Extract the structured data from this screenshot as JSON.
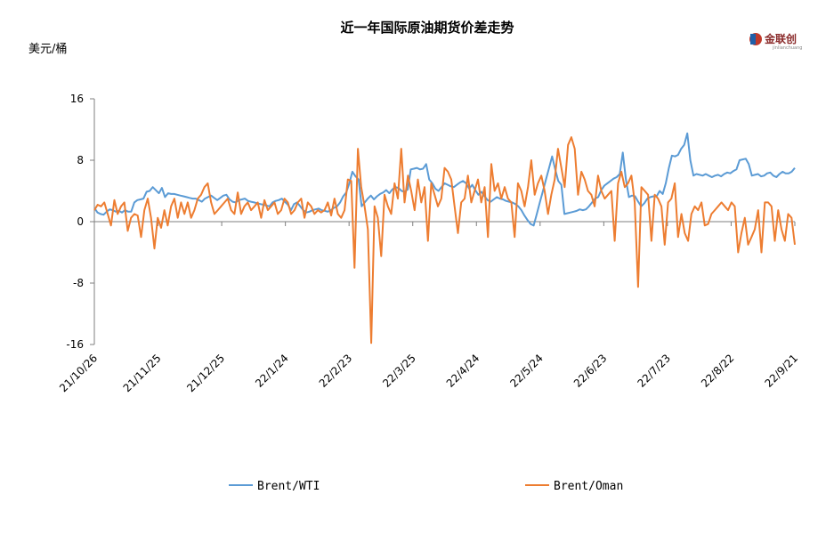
{
  "chart_data": {
    "type": "line",
    "title": "近一年国际原油期货价差走势",
    "ylabel": "美元/桶",
    "ylim": [
      -16,
      16
    ],
    "yticks": [
      16,
      8,
      0,
      -8,
      -16
    ],
    "xticks": [
      "21/10/26",
      "21/11/25",
      "21/12/25",
      "22/1/24",
      "22/2/23",
      "22/3/25",
      "22/4/24",
      "22/5/24",
      "22/6/23",
      "22/7/23",
      "22/8/22",
      "22/9/21"
    ],
    "grid": false,
    "legend_position": "bottom",
    "series": [
      {
        "name": "Brent/WTI",
        "color": "#5b9bd5",
        "values": [
          1.8,
          1.2,
          1.0,
          0.9,
          1.3,
          1.6,
          1.5,
          1.3,
          1.4,
          1.2,
          1.5,
          1.3,
          1.3,
          2.5,
          2.8,
          2.9,
          3.0,
          3.9,
          4.0,
          4.5,
          4.1,
          3.7,
          4.4,
          3.2,
          3.7,
          3.6,
          3.6,
          3.5,
          3.4,
          3.3,
          3.2,
          3.1,
          3.0,
          3.0,
          2.8,
          2.6,
          3.0,
          3.2,
          3.4,
          3.1,
          2.8,
          3.1,
          3.4,
          3.5,
          2.9,
          2.6,
          2.5,
          2.8,
          2.9,
          3.0,
          2.7,
          2.6,
          2.5,
          2.4,
          2.3,
          2.2,
          2.1,
          2.0,
          2.5,
          2.7,
          2.8,
          3.0,
          2.6,
          2.2,
          1.5,
          2.3,
          2.5,
          2.0,
          1.5,
          1.2,
          1.3,
          1.5,
          1.6,
          1.7,
          1.5,
          1.4,
          1.3,
          1.5,
          1.8,
          2.0,
          2.5,
          3.3,
          3.8,
          5.0,
          6.5,
          5.9,
          5.5,
          2.0,
          2.5,
          3.0,
          3.4,
          2.9,
          3.3,
          3.6,
          3.8,
          4.1,
          3.7,
          4.2,
          4.5,
          4.4,
          4.0,
          3.9,
          4.2,
          6.8,
          6.9,
          7.0,
          6.8,
          6.9,
          7.5,
          5.5,
          5.0,
          4.3,
          4.0,
          4.5,
          5.0,
          4.8,
          4.6,
          4.5,
          4.8,
          5.1,
          5.3,
          5.0,
          4.3,
          4.8,
          4.1,
          3.5,
          3.9,
          3.3,
          2.8,
          2.6,
          2.9,
          3.2,
          3.0,
          2.9,
          2.7,
          2.6,
          2.5,
          2.3,
          2.0,
          1.5,
          0.8,
          0.2,
          -0.3,
          -0.5,
          1.0,
          2.5,
          4.0,
          5.5,
          7.0,
          8.5,
          6.8,
          5.3,
          4.8,
          1.0,
          1.1,
          1.2,
          1.3,
          1.4,
          1.6,
          1.5,
          1.6,
          2.0,
          2.5,
          3.0,
          3.2,
          4.1,
          4.7,
          5.0,
          5.3,
          5.6,
          5.8,
          6.2,
          9.0,
          5.5,
          3.2,
          3.4,
          3.3,
          2.6,
          2.0,
          2.4,
          3.0,
          3.2,
          3.3,
          3.3,
          4.0,
          3.6,
          5.0,
          7.0,
          8.6,
          8.5,
          8.7,
          9.5,
          10.0,
          11.5,
          8.0,
          6.0,
          6.2,
          6.1,
          6.0,
          6.2,
          6.0,
          5.8,
          6.0,
          6.1,
          5.9,
          6.2,
          6.4,
          6.3,
          6.6,
          6.8,
          8.0,
          8.1,
          8.2,
          7.5,
          6.0,
          6.1,
          6.2,
          5.9,
          6.0,
          6.3,
          6.4,
          6.0,
          5.8,
          6.2,
          6.5,
          6.3,
          6.3,
          6.5,
          7.0
        ]
      },
      {
        "name": "Brent/Oman",
        "color": "#ed7d31",
        "values": [
          1.5,
          2.2,
          2.0,
          2.5,
          1.0,
          -0.5,
          2.8,
          1.0,
          2.0,
          2.5,
          -1.2,
          0.5,
          1.0,
          0.8,
          -2.0,
          1.5,
          3.0,
          0.5,
          -3.5,
          0.5,
          -0.8,
          1.5,
          -0.5,
          2.0,
          3.0,
          0.5,
          2.5,
          1.0,
          2.5,
          0.5,
          1.5,
          3.0,
          3.5,
          4.5,
          5.0,
          2.5,
          1.0,
          1.5,
          2.0,
          2.5,
          3.0,
          1.5,
          1.0,
          3.8,
          1.0,
          2.0,
          2.5,
          1.5,
          2.0,
          2.5,
          0.5,
          2.8,
          1.5,
          2.0,
          2.5,
          1.0,
          1.5,
          3.0,
          2.5,
          1.0,
          1.5,
          2.5,
          3.0,
          0.5,
          2.5,
          2.0,
          1.0,
          1.5,
          1.2,
          1.5,
          2.5,
          0.8,
          3.0,
          1.0,
          0.5,
          1.5,
          5.5,
          5.3,
          -6.0,
          9.5,
          4.5,
          2.0,
          -1.0,
          -15.8,
          2.0,
          0.5,
          -4.5,
          3.5,
          2.0,
          1.0,
          5.0,
          3.0,
          9.5,
          2.5,
          6.0,
          4.0,
          1.5,
          5.5,
          2.5,
          4.5,
          -2.5,
          5.0,
          3.5,
          2.0,
          3.0,
          7.0,
          6.5,
          5.5,
          2.0,
          -1.5,
          2.5,
          3.0,
          6.0,
          2.5,
          4.0,
          5.5,
          2.5,
          4.5,
          -2.0,
          7.5,
          4.0,
          5.0,
          3.0,
          4.5,
          3.0,
          2.5,
          -2.0,
          5.0,
          4.0,
          2.0,
          4.5,
          8.0,
          3.5,
          5.0,
          6.0,
          4.0,
          1.0,
          3.5,
          5.5,
          9.5,
          7.0,
          4.5,
          10.0,
          11.0,
          9.5,
          3.5,
          6.5,
          5.5,
          4.0,
          3.5,
          2.0,
          6.0,
          4.0,
          3.0,
          3.5,
          4.0,
          -2.5,
          5.0,
          6.5,
          4.5,
          5.0,
          6.0,
          2.5,
          -8.5,
          4.5,
          4.0,
          3.5,
          -2.5,
          3.5,
          3.0,
          2.0,
          -3.0,
          2.5,
          3.0,
          5.0,
          -2.0,
          1.0,
          -1.5,
          -2.5,
          1.0,
          2.0,
          1.5,
          2.5,
          -0.5,
          -0.3,
          1.0,
          1.5,
          2.0,
          2.5,
          2.0,
          1.5,
          2.5,
          2.0,
          -4.0,
          -1.5,
          0.5,
          -3.0,
          -2.0,
          -1.0,
          1.5,
          -4.0,
          2.5,
          2.5,
          2.0,
          -2.5,
          1.5,
          -1.0,
          -2.5,
          1.0,
          0.5,
          -3.0
        ]
      }
    ]
  }
}
